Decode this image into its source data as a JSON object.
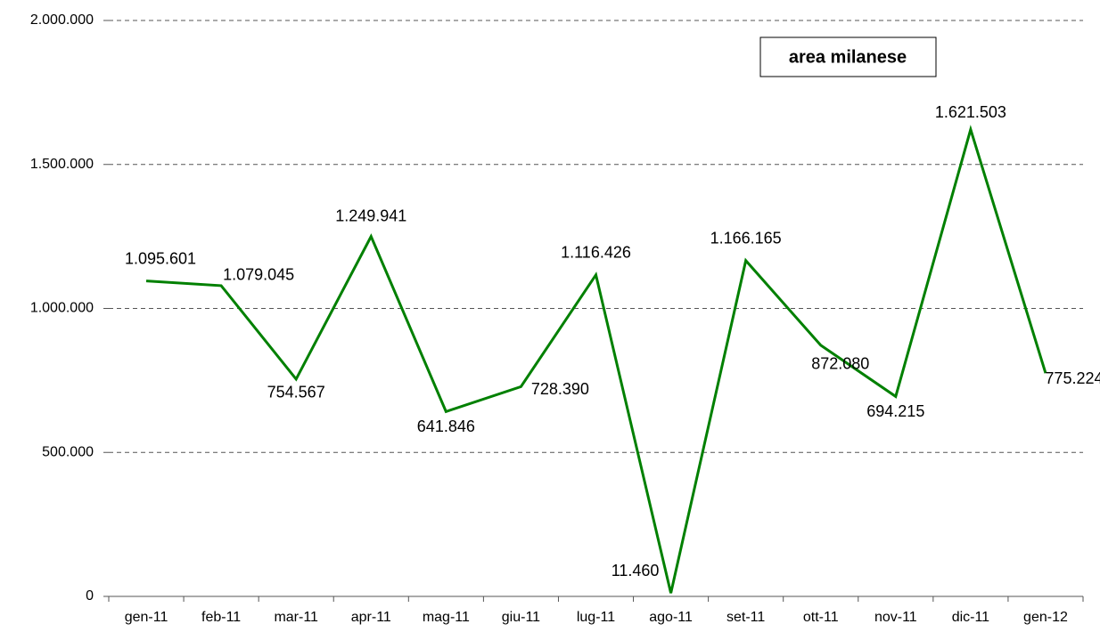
{
  "chart_data": {
    "type": "line",
    "title": "area milanese",
    "categories": [
      "gen-11",
      "feb-11",
      "mar-11",
      "apr-11",
      "mag-11",
      "giu-11",
      "lug-11",
      "ago-11",
      "set-11",
      "ott-11",
      "nov-11",
      "dic-11",
      "gen-12"
    ],
    "series": [
      {
        "name": "area milanese",
        "color": "#008000",
        "values": [
          1095601,
          1079045,
          754567,
          1249941,
          641846,
          728390,
          1116426,
          11460,
          1166165,
          872080,
          694215,
          1621503,
          775224
        ],
        "value_labels": [
          "1.095.601",
          "1.079.045",
          "754.567",
          "1.249.941",
          "641.846",
          "728.390",
          "1.116.426",
          "11.460",
          "1.166.165",
          "872.080",
          "694.215",
          "1.621.503",
          "775.224"
        ]
      }
    ],
    "ylim": [
      0,
      2000000
    ],
    "yticks": [
      0,
      {
        "value": 500000,
        "label": "500.000"
      },
      {
        "value": 1000000,
        "label": "1.000.000"
      },
      {
        "value": 1500000,
        "label": "1.500.000"
      },
      {
        "value": 2000000,
        "label": "2.000.000"
      }
    ],
    "grid": true
  }
}
